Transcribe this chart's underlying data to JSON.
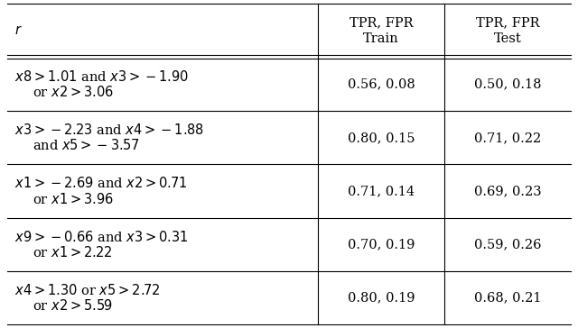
{
  "col_headers_r": "$r$",
  "col_headers_train": "TPR, FPR\nTrain",
  "col_headers_test": "TPR, FPR\nTest",
  "rows": [
    {
      "rule_line1": "$x8 > 1.01$ and $x3 > -1.90$",
      "rule_line2": "or $x2 > 3.06$",
      "train": "0.56, 0.08",
      "test": "0.50, 0.18"
    },
    {
      "rule_line1": "$x3 > -2.23$ and $x4 > -1.88$",
      "rule_line2": "and $x5 > -3.57$",
      "train": "0.80, 0.15",
      "test": "0.71, 0.22"
    },
    {
      "rule_line1": "$x1 > -2.69$ and $x2 > 0.71$",
      "rule_line2": "or $x1 > 3.96$",
      "train": "0.71, 0.14",
      "test": "0.69, 0.23"
    },
    {
      "rule_line1": "$x9 > -0.66$ and $x3 > 0.31$",
      "rule_line2": "or $x1 > 2.22$",
      "train": "0.70, 0.19",
      "test": "0.59, 0.26"
    },
    {
      "rule_line1": "$x4 > 1.30$ or $x5 > 2.72$",
      "rule_line2": "or $x2 > 5.59$",
      "train": "0.80, 0.19",
      "test": "0.68, 0.21"
    }
  ],
  "figwidth": 6.4,
  "figheight": 3.64,
  "dpi": 100,
  "bg_color": "#ffffff",
  "text_color": "#000000",
  "line_color": "#000000",
  "header_fontsize": 10.5,
  "cell_fontsize": 10.5
}
